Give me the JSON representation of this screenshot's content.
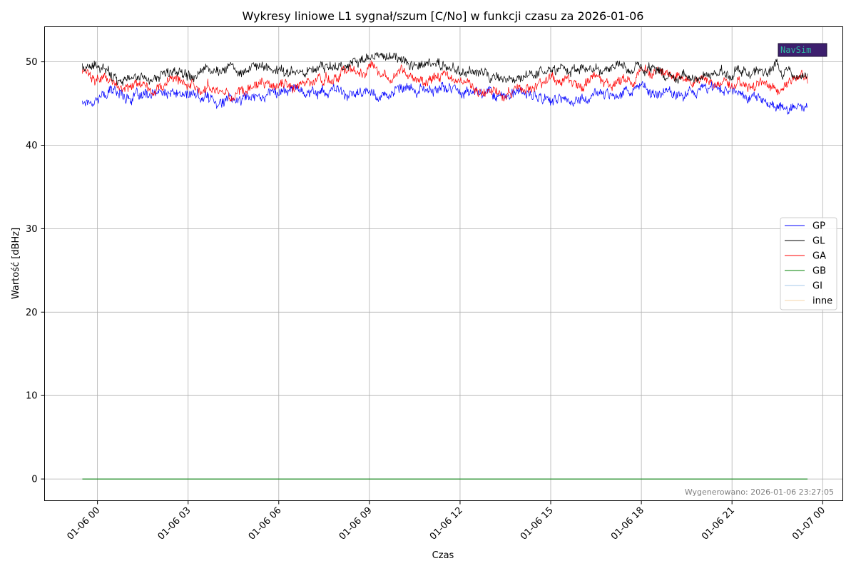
{
  "chart_data": {
    "type": "line",
    "title": "Wykresy liniowe L1 sygnał/szum [C/No] w funkcji czasu za 2026-01-06",
    "xlabel": "Czas",
    "ylabel": "Wartość [dBHz]",
    "x_start": "2026-01-05 23:30",
    "x_end": "2026-01-06 23:30",
    "xlim": [
      "2026-01-05 22:15",
      "2026-01-07 00:40"
    ],
    "ylim": [
      -2.6,
      54.2
    ],
    "x_ticks": [
      "2026-01-06 00:00",
      "2026-01-06 03:00",
      "2026-01-06 06:00",
      "2026-01-06 09:00",
      "2026-01-06 12:00",
      "2026-01-06 15:00",
      "2026-01-06 18:00",
      "2026-01-06 21:00",
      "2026-01-07 00:00"
    ],
    "x_tick_labels": [
      "01-06 00",
      "01-06 03",
      "01-06 06",
      "01-06 09",
      "01-06 12",
      "01-06 15",
      "01-06 18",
      "01-06 21",
      "01-07 00"
    ],
    "y_ticks": [
      0,
      10,
      20,
      30,
      40,
      50
    ],
    "y_tick_labels": [
      "0",
      "10",
      "20",
      "30",
      "40",
      "50"
    ],
    "grid": true,
    "legend_position": "right",
    "x_hours": [
      0,
      1,
      2,
      3,
      4,
      5,
      6,
      7,
      8,
      9,
      10,
      11,
      12,
      13,
      14,
      15,
      16,
      17,
      18,
      19,
      20,
      21,
      22,
      23,
      24
    ],
    "series": [
      {
        "name": "GP",
        "color": "#0000ff",
        "values": [
          45.2,
          46.5,
          45.6,
          46.1,
          45.7,
          45.3,
          46.3,
          46.8,
          46.5,
          46.0,
          46.3,
          46.4,
          46.8,
          46.5,
          46.2,
          45.8,
          45.2,
          46.0,
          46.8,
          46.3,
          46.6,
          47.0,
          46.3,
          44.5,
          44.8
        ]
      },
      {
        "name": "GL",
        "color": "#000000",
        "values": [
          49.5,
          48.5,
          48.0,
          48.5,
          49.5,
          49.0,
          49.2,
          48.8,
          49.4,
          50.0,
          50.4,
          50.0,
          49.3,
          48.8,
          47.5,
          48.8,
          49.3,
          48.7,
          48.9,
          49.3,
          48.2,
          48.5,
          48.7,
          48.9,
          48.0
        ]
      },
      {
        "name": "GA",
        "color": "#ff0000",
        "values": [
          49.0,
          47.2,
          46.5,
          47.8,
          47.2,
          46.3,
          47.0,
          47.2,
          47.8,
          49.2,
          49.5,
          48.3,
          48.2,
          46.8,
          46.0,
          47.2,
          48.0,
          47.7,
          47.9,
          49.2,
          48.0,
          47.3,
          47.0,
          47.2,
          47.8
        ]
      },
      {
        "name": "GB",
        "color": "#008000",
        "values": [
          0,
          0,
          0,
          0,
          0,
          0,
          0,
          0,
          0,
          0,
          0,
          0,
          0,
          0,
          0,
          0,
          0,
          0,
          0,
          0,
          0,
          0,
          0,
          0,
          0
        ]
      },
      {
        "name": "GI",
        "color": "#a6c8e8",
        "values": [
          0,
          0,
          0,
          0,
          0,
          0,
          0,
          0,
          0,
          0,
          0,
          0,
          0,
          0,
          0,
          0,
          0,
          0,
          0,
          0,
          0,
          0,
          0,
          0,
          0
        ]
      },
      {
        "name": "inne",
        "color": "#f5d6a8",
        "values": [
          0,
          0,
          0,
          0,
          0,
          0,
          0,
          0,
          0,
          0,
          0,
          0,
          0,
          0,
          0,
          0,
          0,
          0,
          0,
          0,
          0,
          0,
          0,
          0,
          0
        ]
      }
    ],
    "annotation": "Wygenerowano: 2026-01-06 23:27:05",
    "logo_text": "NavSim"
  }
}
